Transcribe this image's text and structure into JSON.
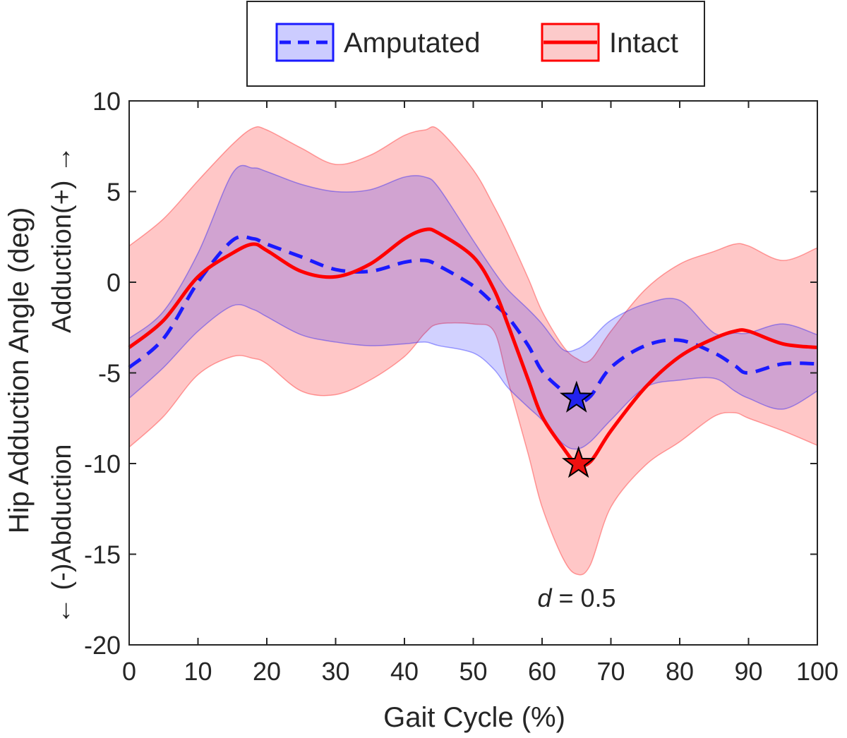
{
  "chart_data": {
    "type": "line",
    "title": "",
    "xlabel": "Gait Cycle (%)",
    "ylabel": "Hip Adduction Angle (deg)",
    "ylabel_negative": "← (-)Abduction",
    "ylabel_positive": "Adduction(+) →",
    "xlim": [
      0,
      100
    ],
    "ylim": [
      -20,
      10
    ],
    "xticks": [
      0,
      10,
      20,
      30,
      40,
      50,
      60,
      70,
      80,
      90,
      100
    ],
    "yticks": [
      -20,
      -15,
      -10,
      -5,
      0,
      5,
      10
    ],
    "grid": false,
    "legend_position": "top-center-outside",
    "x": [
      0,
      5,
      10,
      15,
      18,
      20,
      25,
      30,
      35,
      40,
      43,
      45,
      50,
      53,
      55,
      58,
      60,
      63,
      65,
      67,
      70,
      75,
      80,
      85,
      88,
      90,
      95,
      100
    ],
    "series": [
      {
        "name": "Amputated",
        "style": "dashed",
        "color": "#1a1aff",
        "values": [
          -4.7,
          -3.1,
          0,
          2.3,
          2.4,
          2.1,
          1.4,
          0.7,
          0.6,
          1.1,
          1.2,
          0.9,
          -0.2,
          -1.2,
          -1.9,
          -3.5,
          -4.9,
          -6.0,
          -6.6,
          -6.3,
          -4.7,
          -3.5,
          -3.2,
          -3.9,
          -4.6,
          -5.0,
          -4.5,
          -4.5
        ],
        "upper": [
          -3.1,
          -1.6,
          1.6,
          6.0,
          6.3,
          6.1,
          5.4,
          5.0,
          5.1,
          5.8,
          5.8,
          5.2,
          2.3,
          0.6,
          -0.4,
          -1.5,
          -2.3,
          -3.7,
          -3.7,
          -3.2,
          -2.1,
          -1.2,
          -1.0,
          -2.8,
          -2.8,
          -2.8,
          -2.3,
          -2.9
        ],
        "lower": [
          -6.4,
          -4.7,
          -2.7,
          -1.3,
          -1.5,
          -1.9,
          -2.9,
          -3.3,
          -3.5,
          -3.4,
          -3.3,
          -3.5,
          -3.9,
          -4.8,
          -5.8,
          -6.9,
          -7.6,
          -8.9,
          -9.2,
          -8.8,
          -7.6,
          -5.8,
          -5.4,
          -5.3,
          -6.0,
          -6.4,
          -7.0,
          -6.0
        ],
        "band_color": "#0000ff",
        "marker": {
          "x": 65,
          "y": -6.4,
          "symbol": "star"
        }
      },
      {
        "name": "Intact",
        "style": "solid",
        "color": "#ff0000",
        "values": [
          -3.6,
          -2.1,
          0.3,
          1.6,
          2.1,
          1.75,
          0.6,
          0.3,
          1.0,
          2.4,
          2.9,
          2.7,
          1.4,
          -0.4,
          -2.3,
          -5.4,
          -7.4,
          -9.1,
          -10.0,
          -9.9,
          -8.2,
          -5.8,
          -4.1,
          -3.1,
          -2.7,
          -2.7,
          -3.4,
          -3.6
        ],
        "upper": [
          2.0,
          3.5,
          5.6,
          7.6,
          8.5,
          8.4,
          7.4,
          6.5,
          7.0,
          8.1,
          8.4,
          8.4,
          6.2,
          4.2,
          2.7,
          0.2,
          -1.6,
          -3.5,
          -4.2,
          -4.3,
          -2.7,
          -0.4,
          1.0,
          1.7,
          2.1,
          2.0,
          1.2,
          1.9
        ],
        "lower": [
          -9.1,
          -7.4,
          -5.1,
          -4.1,
          -4.2,
          -4.5,
          -6.0,
          -6.2,
          -5.4,
          -4.1,
          -2.8,
          -2.3,
          -2.3,
          -2.7,
          -5.4,
          -9.5,
          -12.4,
          -15.2,
          -16.1,
          -15.6,
          -12.4,
          -10.1,
          -8.8,
          -7.4,
          -7.2,
          -7.5,
          -8.2,
          -9.0
        ],
        "band_color": "#ff0000",
        "marker": {
          "x": 65.3,
          "y": -10.0,
          "symbol": "star"
        }
      }
    ],
    "annotations": [
      {
        "italic": "d",
        "text": " = 0.5",
        "x": 65,
        "y": -17.6
      }
    ]
  }
}
